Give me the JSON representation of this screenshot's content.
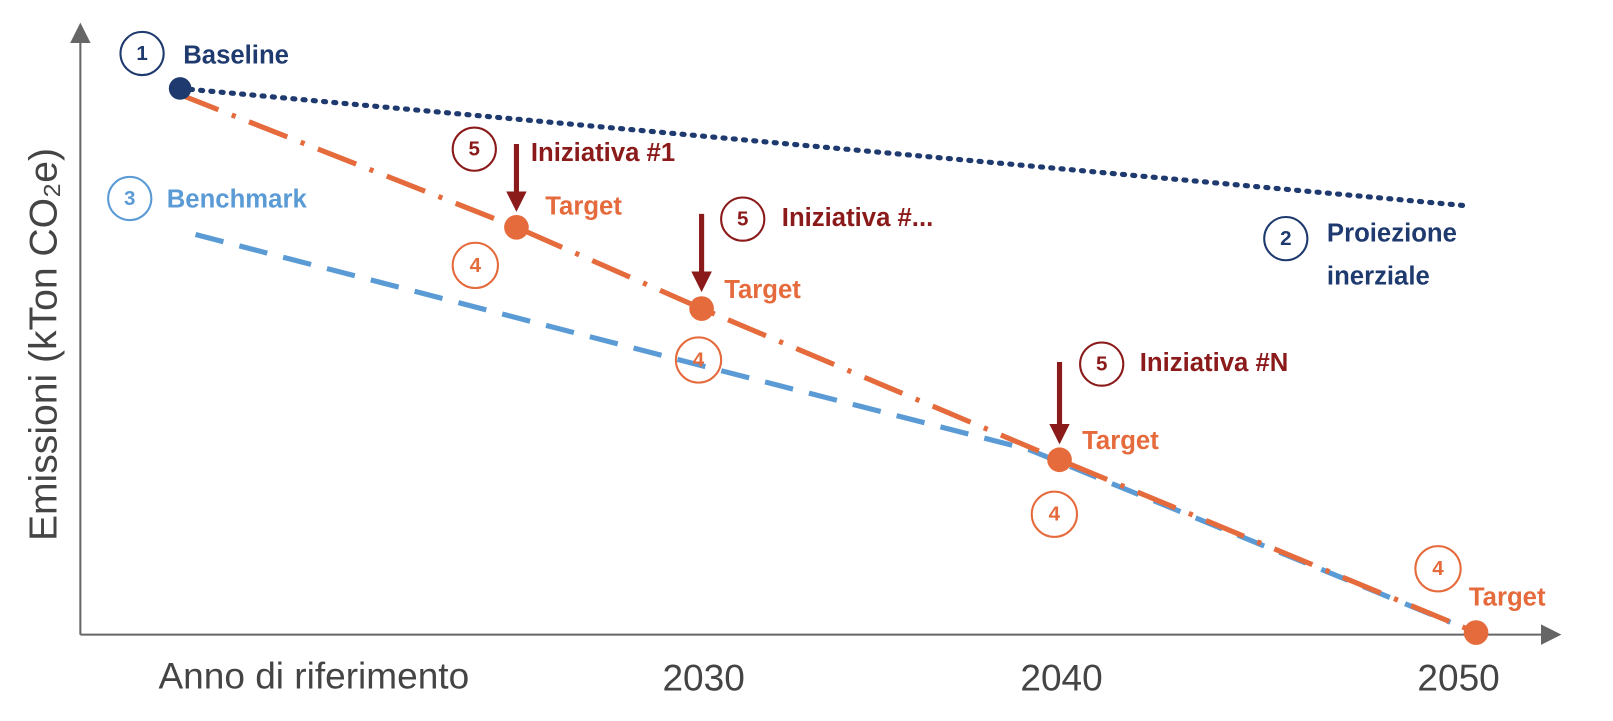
{
  "axis": {
    "y_label": "Emissioni (kTon CO₂e)",
    "x_labels": [
      "Anno di riferimento",
      "2030",
      "2040",
      "2050"
    ]
  },
  "baseline": {
    "number": "1",
    "text": "Baseline"
  },
  "projection": {
    "number": "2",
    "text": [
      "Proiezione",
      "inerziale"
    ]
  },
  "benchmark": {
    "number": "3",
    "text": "Benchmark"
  },
  "targets": [
    {
      "number": "4",
      "text": "Target"
    },
    {
      "number": "4",
      "text": "Target"
    },
    {
      "number": "4",
      "text": "Target"
    },
    {
      "number": "4",
      "text": "Target"
    }
  ],
  "initiatives": [
    {
      "number": "5",
      "text": "Iniziativa #1"
    },
    {
      "number": "5",
      "text": "Iniziativa #..."
    },
    {
      "number": "5",
      "text": "Iniziativa #N"
    }
  ]
}
